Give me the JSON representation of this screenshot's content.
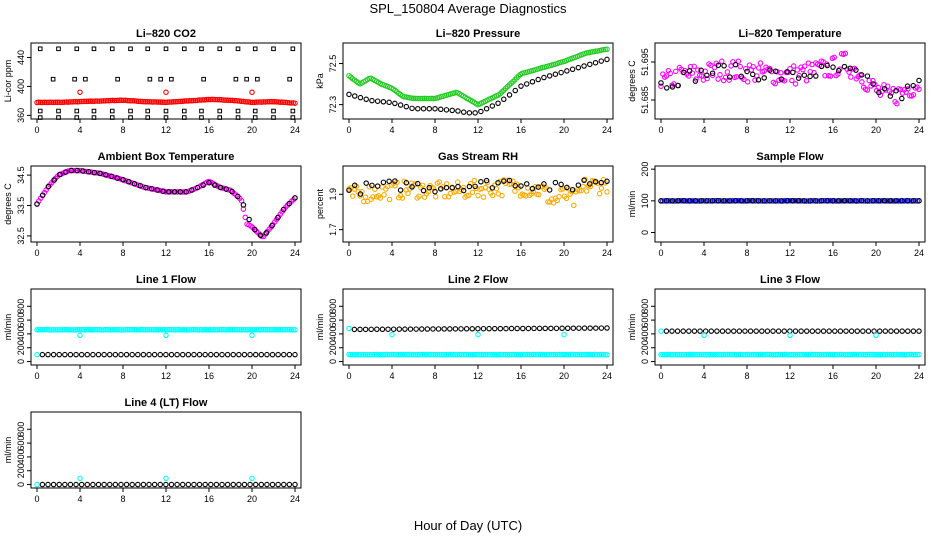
{
  "figure": {
    "title": "SPL_150804  Average Diagnostics",
    "xlabel": "Hour of Day (UTC)"
  },
  "colors": {
    "black": "#000000",
    "red": "#ff0000",
    "green": "#22cc22",
    "magenta": "#ff00ff",
    "orange": "#ffaa00",
    "blue": "#1a1aff",
    "cyan": "#00ffff"
  },
  "chart_data": [
    {
      "type": "scatter",
      "title": "Li–820 CO2",
      "ylabel": "Li-cor ppm",
      "x_ticks": [
        0,
        4,
        8,
        12,
        16,
        20,
        24
      ],
      "ylim": [
        355,
        460
      ],
      "y_ticks": [
        360,
        400,
        440
      ],
      "series": [
        {
          "color": "red",
          "kind": "dense",
          "x": [
            0,
            2,
            4,
            6,
            8,
            10,
            12,
            14,
            16,
            18,
            20,
            22,
            24
          ],
          "y": [
            378,
            378,
            379,
            380,
            381,
            379,
            378,
            380,
            382,
            381,
            378,
            379,
            377
          ]
        },
        {
          "color": "black",
          "kind": "grid",
          "values": [
            357,
            366,
            452
          ],
          "xs": [
            0.3,
            2,
            3.7,
            5.3,
            7,
            8.7,
            10.3,
            12,
            13.7,
            15.3,
            17,
            18.7,
            20.3,
            22,
            23.8
          ]
        },
        {
          "color": "black",
          "kind": "grid",
          "values": [
            410
          ],
          "xs": [
            1.5,
            3.5,
            4.5,
            7.5,
            10.5,
            11.5,
            12.5,
            15.5,
            18.5,
            19.5,
            20.5,
            23.5
          ]
        },
        {
          "color": "red",
          "kind": "points",
          "x": [
            4,
            12,
            20
          ],
          "y": [
            392,
            392,
            392
          ]
        }
      ]
    },
    {
      "type": "scatter",
      "title": "Li–820 Pressure",
      "ylabel": "kPa",
      "x_ticks": [
        0,
        4,
        8,
        12,
        16,
        20,
        24
      ],
      "ylim": [
        72.23,
        72.6
      ],
      "y_ticks": [
        72.3,
        72.5
      ],
      "series": [
        {
          "color": "green",
          "kind": "dense",
          "x": [
            0,
            1,
            2,
            3,
            4,
            5,
            6,
            8,
            10,
            11,
            12,
            14,
            16,
            18,
            20,
            22,
            24
          ],
          "y": [
            72.44,
            72.4,
            72.43,
            72.4,
            72.38,
            72.34,
            72.33,
            72.33,
            72.36,
            72.33,
            72.3,
            72.35,
            72.45,
            72.48,
            72.51,
            72.55,
            72.57
          ]
        },
        {
          "color": "black",
          "kind": "dense_sparse",
          "x": [
            0,
            2,
            4,
            6,
            8,
            10,
            11,
            12,
            14,
            16,
            18,
            20,
            22,
            24
          ],
          "y": [
            72.35,
            72.32,
            72.31,
            72.28,
            72.28,
            72.27,
            72.26,
            72.26,
            72.31,
            72.39,
            72.43,
            72.46,
            72.49,
            72.52
          ]
        }
      ]
    },
    {
      "type": "scatter",
      "title": "Li–820 Temperature",
      "ylabel": "degrees C",
      "x_ticks": [
        0,
        4,
        8,
        12,
        16,
        20,
        24
      ],
      "ylim": [
        51.68,
        51.7
      ],
      "y_ticks": [
        51.685,
        51.695
      ],
      "series": [
        {
          "color": "magenta",
          "kind": "noisy",
          "x": [
            0,
            2,
            4,
            6,
            8,
            10,
            12,
            14,
            16,
            17,
            18,
            19,
            20,
            21,
            22,
            23,
            24
          ],
          "y": [
            51.6895,
            51.6915,
            51.692,
            51.693,
            51.6925,
            51.692,
            51.6915,
            51.6925,
            51.6935,
            51.695,
            51.693,
            51.6905,
            51.6875,
            51.686,
            51.6865,
            51.688,
            51.6895
          ],
          "jit": 0.0028
        },
        {
          "color": "black",
          "kind": "noisy_sparse",
          "x": [
            0,
            2,
            4,
            6,
            8,
            10,
            12,
            14,
            16,
            18,
            20,
            22,
            24
          ],
          "y": [
            51.689,
            51.691,
            51.692,
            51.693,
            51.692,
            51.692,
            51.691,
            51.692,
            51.693,
            51.692,
            51.688,
            51.686,
            51.689
          ],
          "jit": 0.0018
        }
      ]
    },
    {
      "type": "scatter",
      "title": "Ambient Box Temperature",
      "ylabel": "degrees C",
      "x_ticks": [
        0,
        4,
        8,
        12,
        16,
        20,
        24
      ],
      "ylim": [
        32.3,
        34.8
      ],
      "y_ticks": [
        32.5,
        33.5,
        34.5
      ],
      "series": [
        {
          "color": "magenta",
          "kind": "dense_line",
          "x": [
            0,
            1,
            2,
            3,
            4,
            6,
            8,
            10,
            12,
            14,
            15,
            16,
            17,
            18,
            19,
            19.5,
            20,
            21,
            22,
            23,
            24
          ],
          "y": [
            33.55,
            34.1,
            34.5,
            34.65,
            34.65,
            34.55,
            34.35,
            34.1,
            33.95,
            33.95,
            34.1,
            34.3,
            34.1,
            34.0,
            33.7,
            32.9,
            32.8,
            32.45,
            32.9,
            33.4,
            33.75
          ]
        },
        {
          "color": "black",
          "kind": "dense_sparse",
          "x": [
            0,
            1,
            2,
            3,
            4,
            6,
            8,
            10,
            12,
            14,
            15,
            16,
            17,
            18,
            19,
            20,
            21,
            22,
            23,
            24
          ],
          "y": [
            33.55,
            34.1,
            34.5,
            34.65,
            34.65,
            34.55,
            34.35,
            34.1,
            33.95,
            33.95,
            34.1,
            34.25,
            34.1,
            34.0,
            33.7,
            32.8,
            32.45,
            32.9,
            33.4,
            33.75
          ]
        }
      ]
    },
    {
      "type": "scatter",
      "title": "Gas Stream RH",
      "ylabel": "percent",
      "x_ticks": [
        0,
        4,
        8,
        12,
        16,
        20,
        24
      ],
      "ylim": [
        1.63,
        2.06
      ],
      "y_ticks": [
        1.7,
        1.9
      ],
      "series": [
        {
          "color": "orange",
          "kind": "noisy",
          "x": [
            0,
            2,
            4,
            6,
            8,
            10,
            12,
            14,
            16,
            18,
            19,
            20,
            21,
            22,
            23,
            24
          ],
          "y": [
            1.89,
            1.91,
            1.92,
            1.93,
            1.92,
            1.92,
            1.93,
            1.94,
            1.94,
            1.92,
            1.86,
            1.9,
            1.86,
            1.95,
            1.95,
            1.96
          ],
          "jit": 0.05
        },
        {
          "color": "black",
          "kind": "noisy_sparse",
          "x": [
            0,
            2,
            4,
            6,
            8,
            10,
            12,
            14,
            16,
            18,
            20,
            22,
            24
          ],
          "y": [
            1.92,
            1.94,
            1.95,
            1.95,
            1.94,
            1.95,
            1.95,
            1.97,
            1.97,
            1.95,
            1.93,
            1.97,
            1.98
          ],
          "jit": 0.03
        }
      ]
    },
    {
      "type": "scatter",
      "title": "Sample Flow",
      "ylabel": "ml/min",
      "x_ticks": [
        0,
        4,
        8,
        12,
        16,
        20,
        24
      ],
      "ylim": [
        -30,
        210
      ],
      "y_ticks": [
        0,
        100,
        200
      ],
      "series": [
        {
          "color": "blue",
          "kind": "dense",
          "x": [
            0,
            24
          ],
          "y": [
            100,
            100
          ]
        },
        {
          "color": "black",
          "kind": "dense_sparse",
          "x": [
            0,
            24
          ],
          "y": [
            100,
            100
          ]
        }
      ]
    },
    {
      "type": "scatter",
      "title": "Line 1 Flow",
      "ylabel": "ml/min",
      "x_ticks": [
        0,
        4,
        8,
        12,
        16,
        20,
        24
      ],
      "ylim": [
        -50,
        1050
      ],
      "y_ticks": [
        0,
        200,
        400,
        600,
        800
      ],
      "series": [
        {
          "color": "cyan",
          "kind": "dense",
          "x": [
            0,
            24
          ],
          "y": [
            460,
            460
          ]
        },
        {
          "color": "black",
          "kind": "dense_sparse",
          "x": [
            0.5,
            24
          ],
          "y": [
            100,
            100
          ]
        },
        {
          "color": "cyan",
          "kind": "points",
          "x": [
            0,
            4,
            12,
            20
          ],
          "y": [
            100,
            380,
            380,
            380
          ]
        }
      ]
    },
    {
      "type": "scatter",
      "title": "Line 2 Flow",
      "ylabel": "ml/min",
      "x_ticks": [
        0,
        4,
        8,
        12,
        16,
        20,
        24
      ],
      "ylim": [
        -50,
        1050
      ],
      "y_ticks": [
        0,
        200,
        400,
        600,
        800
      ],
      "series": [
        {
          "color": "cyan",
          "kind": "dense",
          "x": [
            0,
            24
          ],
          "y": [
            100,
            100
          ]
        },
        {
          "color": "black",
          "kind": "dense_sparse",
          "x": [
            0.5,
            24
          ],
          "y": [
            465,
            485
          ]
        },
        {
          "color": "cyan",
          "kind": "points",
          "x": [
            0,
            4,
            12,
            20
          ],
          "y": [
            480,
            390,
            390,
            390
          ]
        }
      ]
    },
    {
      "type": "scatter",
      "title": "Line 3 Flow",
      "ylabel": "ml/min",
      "x_ticks": [
        0,
        4,
        8,
        12,
        16,
        20,
        24
      ],
      "ylim": [
        -50,
        1050
      ],
      "y_ticks": [
        0,
        200,
        400,
        600,
        800
      ],
      "series": [
        {
          "color": "cyan",
          "kind": "dense",
          "x": [
            0,
            24
          ],
          "y": [
            100,
            100
          ]
        },
        {
          "color": "black",
          "kind": "dense_sparse",
          "x": [
            0.5,
            24
          ],
          "y": [
            440,
            440
          ]
        },
        {
          "color": "cyan",
          "kind": "points",
          "x": [
            0,
            4,
            12,
            20
          ],
          "y": [
            440,
            380,
            380,
            380
          ]
        }
      ]
    },
    {
      "type": "scatter",
      "title": "Line 4 (LT) Flow",
      "ylabel": "ml/min",
      "x_ticks": [
        0,
        4,
        8,
        12,
        16,
        20,
        24
      ],
      "ylim": [
        -50,
        1050
      ],
      "y_ticks": [
        0,
        200,
        400,
        600,
        800
      ],
      "series": [
        {
          "color": "black",
          "kind": "dense_sparse",
          "x": [
            0.5,
            24
          ],
          "y": [
            0,
            0
          ]
        },
        {
          "color": "cyan",
          "kind": "points",
          "x": [
            0,
            4,
            12,
            20
          ],
          "y": [
            0,
            90,
            90,
            90
          ]
        }
      ]
    }
  ]
}
